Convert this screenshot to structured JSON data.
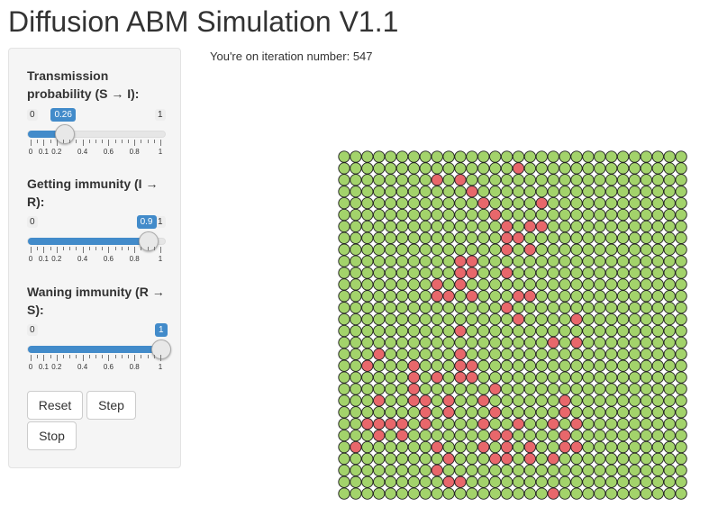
{
  "app": {
    "title": "Diffusion ABM Simulation V1.1"
  },
  "status": {
    "iteration_text": "You're on iteration number: 547"
  },
  "sliders": [
    {
      "label_line1": "Transmission",
      "label_line2": "probability (S → I):",
      "min_label": "0",
      "max_label": "1",
      "value": 0.26,
      "value_label": "0.26",
      "tick_labels": [
        "0",
        "0.1",
        "0.2",
        "0.4",
        "0.6",
        "0.8",
        "1"
      ]
    },
    {
      "label_line1": "Getting immunity (I →",
      "label_line2": "R):",
      "min_label": "0",
      "max_label": "1",
      "value": 0.9,
      "value_label": "0.9",
      "tick_labels": [
        "0",
        "0.1",
        "0.2",
        "0.4",
        "0.6",
        "0.8",
        "1"
      ]
    },
    {
      "label_line1": "Waning immunity (R →",
      "label_line2": "S):",
      "min_label": "0",
      "max_label": "1",
      "value": 1,
      "value_label": "1",
      "tick_labels": [
        "0",
        "0.1",
        "0.2",
        "0.4",
        "0.6",
        "0.8",
        "1"
      ]
    }
  ],
  "buttons": {
    "reset": "Reset",
    "step": "Step",
    "stop": "Stop"
  },
  "grid": {
    "rows": 30,
    "cols": 30,
    "colors": {
      "S": "#a3d36b",
      "I": "#e8676b"
    },
    "infected": [
      [
        1,
        15
      ],
      [
        2,
        8
      ],
      [
        2,
        10
      ],
      [
        3,
        11
      ],
      [
        4,
        12
      ],
      [
        4,
        17
      ],
      [
        5,
        13
      ],
      [
        6,
        14
      ],
      [
        6,
        16
      ],
      [
        6,
        17
      ],
      [
        7,
        14
      ],
      [
        7,
        15
      ],
      [
        8,
        14
      ],
      [
        8,
        16
      ],
      [
        9,
        10
      ],
      [
        9,
        11
      ],
      [
        10,
        10
      ],
      [
        10,
        11
      ],
      [
        10,
        14
      ],
      [
        11,
        8
      ],
      [
        11,
        10
      ],
      [
        12,
        8
      ],
      [
        12,
        9
      ],
      [
        12,
        11
      ],
      [
        12,
        15
      ],
      [
        12,
        16
      ],
      [
        13,
        14
      ],
      [
        14,
        15
      ],
      [
        14,
        20
      ],
      [
        15,
        10
      ],
      [
        16,
        18
      ],
      [
        16,
        20
      ],
      [
        17,
        3
      ],
      [
        17,
        10
      ],
      [
        18,
        2
      ],
      [
        18,
        6
      ],
      [
        18,
        10
      ],
      [
        18,
        11
      ],
      [
        19,
        6
      ],
      [
        19,
        8
      ],
      [
        19,
        10
      ],
      [
        19,
        11
      ],
      [
        20,
        6
      ],
      [
        20,
        13
      ],
      [
        21,
        3
      ],
      [
        21,
        6
      ],
      [
        21,
        7
      ],
      [
        21,
        9
      ],
      [
        21,
        12
      ],
      [
        21,
        19
      ],
      [
        22,
        7
      ],
      [
        22,
        9
      ],
      [
        22,
        13
      ],
      [
        22,
        19
      ],
      [
        23,
        2
      ],
      [
        23,
        3
      ],
      [
        23,
        4
      ],
      [
        23,
        5
      ],
      [
        23,
        7
      ],
      [
        23,
        12
      ],
      [
        23,
        15
      ],
      [
        23,
        18
      ],
      [
        23,
        20
      ],
      [
        24,
        3
      ],
      [
        24,
        5
      ],
      [
        24,
        13
      ],
      [
        24,
        14
      ],
      [
        24,
        19
      ],
      [
        25,
        1
      ],
      [
        25,
        8
      ],
      [
        25,
        12
      ],
      [
        25,
        14
      ],
      [
        25,
        16
      ],
      [
        25,
        19
      ],
      [
        25,
        20
      ],
      [
        26,
        9
      ],
      [
        26,
        13
      ],
      [
        26,
        14
      ],
      [
        26,
        16
      ],
      [
        26,
        18
      ],
      [
        27,
        8
      ],
      [
        28,
        9
      ],
      [
        28,
        10
      ],
      [
        29,
        18
      ]
    ]
  }
}
